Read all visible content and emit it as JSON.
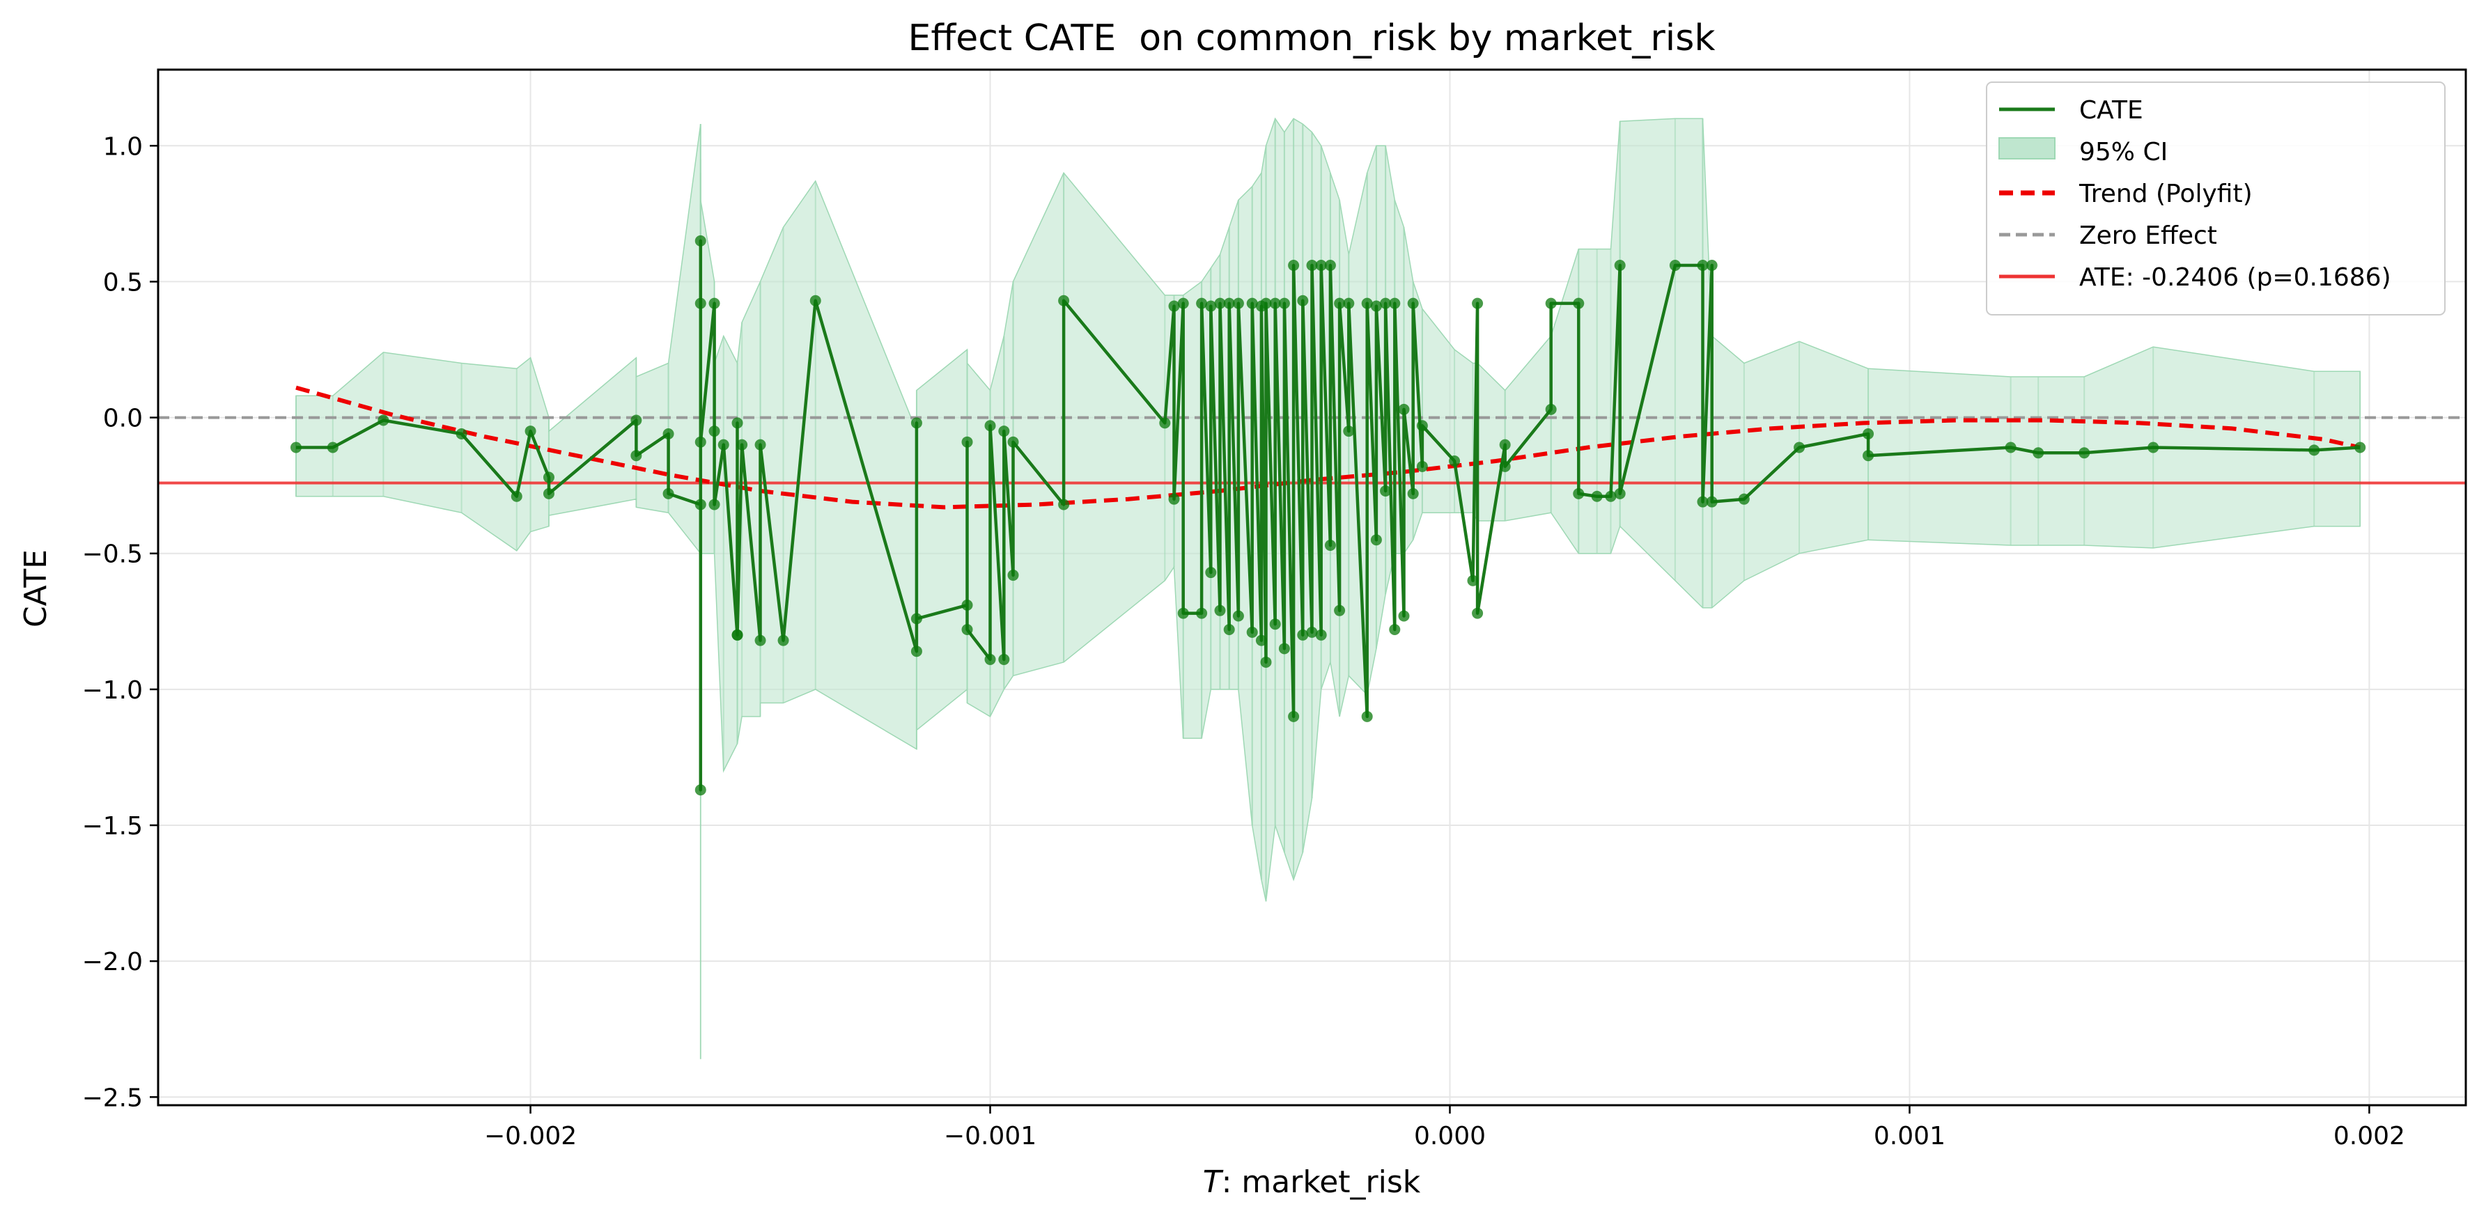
{
  "chart_data": {
    "type": "line",
    "title": "Effect CATE  on common_risk by market_risk",
    "xlabel_italic": "T",
    "xlabel_rest": ": market_risk",
    "ylabel": "CATE",
    "xlim": [
      -0.00281,
      0.00221
    ],
    "ylim": [
      -2.53,
      1.28
    ],
    "x_ticks": [
      -0.002,
      -0.001,
      0.0,
      0.001,
      0.002
    ],
    "x_tick_labels": [
      "−0.002",
      "−0.001",
      "0.000",
      "0.001",
      "0.002"
    ],
    "y_ticks": [
      1.0,
      0.5,
      0.0,
      -0.5,
      -1.0,
      -1.5,
      -2.0,
      -2.5
    ],
    "y_tick_labels": [
      "1.0",
      "0.5",
      "0.0",
      "−0.5",
      "−1.0",
      "−1.5",
      "−2.0",
      "−2.5"
    ],
    "grid": true,
    "legend_position": "top-right",
    "ate": {
      "value": -0.2406,
      "p": 0.1686,
      "label": "ATE: -0.2406 (p=0.1686)"
    },
    "zero_effect": {
      "value": 0.0,
      "label": "Zero Effect"
    },
    "legend": [
      "CATE",
      "95% CI",
      "Trend (Polyfit)",
      "Zero Effect",
      "ATE: -0.2406 (p=0.1686)"
    ],
    "colors": {
      "cate": "#1a7a1a",
      "point": "#0b7a0b",
      "ci_fill": "#bfe6cf",
      "ci_line": "#9ed8b4",
      "trend": "#ee0000",
      "zero": "#999999",
      "ate": "#ee3333"
    },
    "series": [
      {
        "name": "CATE",
        "x": [
          -0.00251,
          -0.00243,
          -0.00232,
          -0.00215,
          -0.00203,
          -0.002,
          -0.00196,
          -0.00196,
          -0.00177,
          -0.00177,
          -0.0017,
          -0.0017,
          -0.00163,
          -0.00163,
          -0.00163,
          -0.00163,
          -0.00163,
          -0.0016,
          -0.0016,
          -0.0016,
          -0.00158,
          -0.00155,
          -0.00155,
          -0.00155,
          -0.00154,
          -0.0015,
          -0.0015,
          -0.00145,
          -0.00138,
          -0.00116,
          -0.00116,
          -0.00116,
          -0.00105,
          -0.00105,
          -0.00105,
          -0.001,
          -0.001,
          -0.00097,
          -0.00097,
          -0.00095,
          -0.00095,
          -0.00084,
          -0.00084,
          -0.00062,
          -0.0006,
          -0.0006,
          -0.00058,
          -0.00058,
          -0.00054,
          -0.00054,
          -0.00052,
          -0.00052,
          -0.0005,
          -0.0005,
          -0.00048,
          -0.00048,
          -0.00046,
          -0.00046,
          -0.00043,
          -0.00043,
          -0.00041,
          -0.00041,
          -0.0004,
          -0.0004,
          -0.00038,
          -0.00038,
          -0.00036,
          -0.00036,
          -0.00034,
          -0.00034,
          -0.00032,
          -0.00032,
          -0.0003,
          -0.0003,
          -0.00028,
          -0.00028,
          -0.00026,
          -0.00026,
          -0.00024,
          -0.00024,
          -0.00022,
          -0.00022,
          -0.00018,
          -0.00018,
          -0.00016,
          -0.00016,
          -0.00014,
          -0.00014,
          -0.00012,
          -0.00012,
          -0.0001,
          -0.0001,
          -8e-05,
          -8e-05,
          -6e-05,
          -6e-05,
          1e-05,
          5e-05,
          6e-05,
          6e-05,
          0.00012,
          0.00012,
          0.00022,
          0.00022,
          0.00028,
          0.00028,
          0.00032,
          0.00035,
          0.00037,
          0.00037,
          0.00049,
          0.00055,
          0.00055,
          0.00057,
          0.00057,
          0.00064,
          0.00076,
          0.00091,
          0.00091,
          0.00122,
          0.00128,
          0.00138,
          0.00153,
          0.00188,
          0.00198
        ],
        "y": [
          -0.11,
          -0.11,
          -0.01,
          -0.06,
          -0.29,
          -0.05,
          -0.22,
          -0.28,
          -0.01,
          -0.14,
          -0.06,
          -0.28,
          -0.32,
          0.65,
          -1.37,
          0.42,
          -0.09,
          0.42,
          -0.05,
          -0.32,
          -0.1,
          -0.8,
          -0.02,
          -0.8,
          -0.1,
          -0.82,
          -0.1,
          -0.82,
          0.43,
          -0.86,
          -0.02,
          -0.74,
          -0.69,
          -0.09,
          -0.78,
          -0.89,
          -0.03,
          -0.89,
          -0.05,
          -0.58,
          -0.09,
          -0.32,
          0.43,
          -0.02,
          0.41,
          -0.3,
          0.42,
          -0.72,
          -0.72,
          0.42,
          -0.57,
          0.41,
          -0.71,
          0.42,
          -0.78,
          0.42,
          -0.73,
          0.42,
          -0.79,
          0.42,
          -0.82,
          0.41,
          -0.9,
          0.42,
          -0.76,
          0.42,
          -0.85,
          0.42,
          -1.1,
          0.56,
          -0.8,
          0.43,
          -0.79,
          0.56,
          -0.8,
          0.56,
          -0.47,
          0.56,
          -0.71,
          0.42,
          -0.05,
          0.42,
          -1.1,
          0.42,
          -0.45,
          0.41,
          -0.27,
          0.42,
          -0.78,
          0.42,
          -0.73,
          0.03,
          -0.28,
          0.42,
          -0.18,
          -0.03,
          -0.16,
          -0.6,
          0.42,
          -0.72,
          -0.1,
          -0.18,
          0.03,
          0.42,
          0.42,
          -0.28,
          -0.29,
          -0.29,
          0.56,
          -0.28,
          0.56,
          0.56,
          -0.31,
          0.56,
          -0.31,
          -0.3,
          -0.11,
          -0.06,
          -0.14,
          -0.11,
          -0.13,
          -0.13,
          -0.11,
          -0.12,
          -0.11
        ],
        "ci_lower": [
          -0.29,
          -0.29,
          -0.29,
          -0.35,
          -0.49,
          -0.42,
          -0.4,
          -0.36,
          -0.3,
          -0.33,
          -0.35,
          -0.35,
          -0.5,
          -0.5,
          -2.36,
          -0.5,
          -0.5,
          -0.5,
          -0.5,
          -0.5,
          -1.3,
          -1.2,
          -1.2,
          -1.2,
          -1.1,
          -1.1,
          -1.05,
          -1.05,
          -1.0,
          -1.22,
          -1.22,
          -1.15,
          -1.0,
          -1.0,
          -1.05,
          -1.1,
          -1.1,
          -1.0,
          -1.0,
          -0.95,
          -0.95,
          -0.9,
          -0.9,
          -0.6,
          -0.55,
          -0.55,
          -1.18,
          -1.18,
          -1.18,
          -1.18,
          -1.0,
          -1.0,
          -1.0,
          -1.0,
          -1.0,
          -1.0,
          -1.0,
          -1.0,
          -1.5,
          -1.5,
          -1.7,
          -1.7,
          -1.78,
          -1.78,
          -1.5,
          -1.5,
          -1.6,
          -1.6,
          -1.7,
          -1.7,
          -1.6,
          -1.6,
          -1.4,
          -1.4,
          -1.0,
          -1.0,
          -0.9,
          -0.9,
          -1.1,
          -1.1,
          -0.95,
          -0.95,
          -1.02,
          -1.02,
          -0.85,
          -0.85,
          -0.65,
          -0.65,
          -0.5,
          -0.5,
          -0.5,
          -0.5,
          -0.45,
          -0.45,
          -0.35,
          -0.35,
          -0.35,
          -0.35,
          -0.38,
          -0.38,
          -0.38,
          -0.38,
          -0.35,
          -0.35,
          -0.5,
          -0.5,
          -0.5,
          -0.5,
          -0.4,
          -0.4,
          -0.6,
          -0.7,
          -0.7,
          -0.7,
          -0.7,
          -0.6,
          -0.5,
          -0.45,
          -0.45,
          -0.47,
          -0.47,
          -0.47,
          -0.48,
          -0.4,
          -0.4
        ],
        "ci_upper": [
          0.08,
          0.08,
          0.24,
          0.2,
          0.18,
          0.22,
          0.0,
          -0.05,
          0.22,
          0.15,
          0.2,
          0.2,
          1.08,
          1.08,
          0.95,
          0.9,
          0.8,
          0.5,
          0.4,
          0.2,
          0.3,
          0.2,
          0.2,
          0.2,
          0.35,
          0.5,
          0.5,
          0.7,
          0.87,
          -0.05,
          -0.05,
          0.1,
          0.25,
          0.25,
          0.2,
          0.1,
          0.1,
          0.3,
          0.3,
          0.5,
          0.5,
          0.9,
          0.9,
          0.45,
          0.45,
          0.45,
          0.45,
          0.45,
          0.5,
          0.5,
          0.55,
          0.55,
          0.6,
          0.6,
          0.7,
          0.7,
          0.8,
          0.8,
          0.85,
          0.85,
          0.9,
          0.9,
          1.0,
          1.0,
          1.1,
          1.1,
          1.05,
          1.05,
          1.1,
          1.1,
          1.08,
          1.08,
          1.05,
          1.05,
          1.0,
          1.0,
          0.9,
          0.9,
          0.8,
          0.8,
          0.6,
          0.6,
          0.9,
          0.9,
          1.0,
          1.0,
          1.0,
          1.0,
          0.8,
          0.8,
          0.7,
          0.7,
          0.5,
          0.5,
          0.4,
          0.4,
          0.25,
          0.2,
          0.2,
          0.2,
          0.1,
          0.1,
          0.3,
          0.3,
          0.62,
          0.62,
          0.62,
          0.62,
          1.09,
          1.09,
          1.1,
          1.1,
          1.1,
          0.3,
          0.3,
          0.2,
          0.28,
          0.18,
          0.18,
          0.15,
          0.15,
          0.15,
          0.26,
          0.17,
          0.17
        ]
      },
      {
        "name": "Trend (Polyfit)",
        "x": [
          -0.00251,
          -0.0023,
          -0.0021,
          -0.0019,
          -0.0017,
          -0.0015,
          -0.0013,
          -0.0011,
          -0.0009,
          -0.0007,
          -0.0005,
          -0.0003,
          -0.0001,
          0.0001,
          0.0003,
          0.0005,
          0.0007,
          0.0009,
          0.0011,
          0.0013,
          0.0015,
          0.0017,
          0.0019,
          0.00198
        ],
        "y": [
          0.11,
          0.01,
          -0.07,
          -0.14,
          -0.21,
          -0.27,
          -0.31,
          -0.33,
          -0.32,
          -0.3,
          -0.27,
          -0.23,
          -0.2,
          -0.16,
          -0.11,
          -0.07,
          -0.04,
          -0.02,
          -0.01,
          -0.01,
          -0.02,
          -0.04,
          -0.08,
          -0.11
        ]
      }
    ]
  }
}
